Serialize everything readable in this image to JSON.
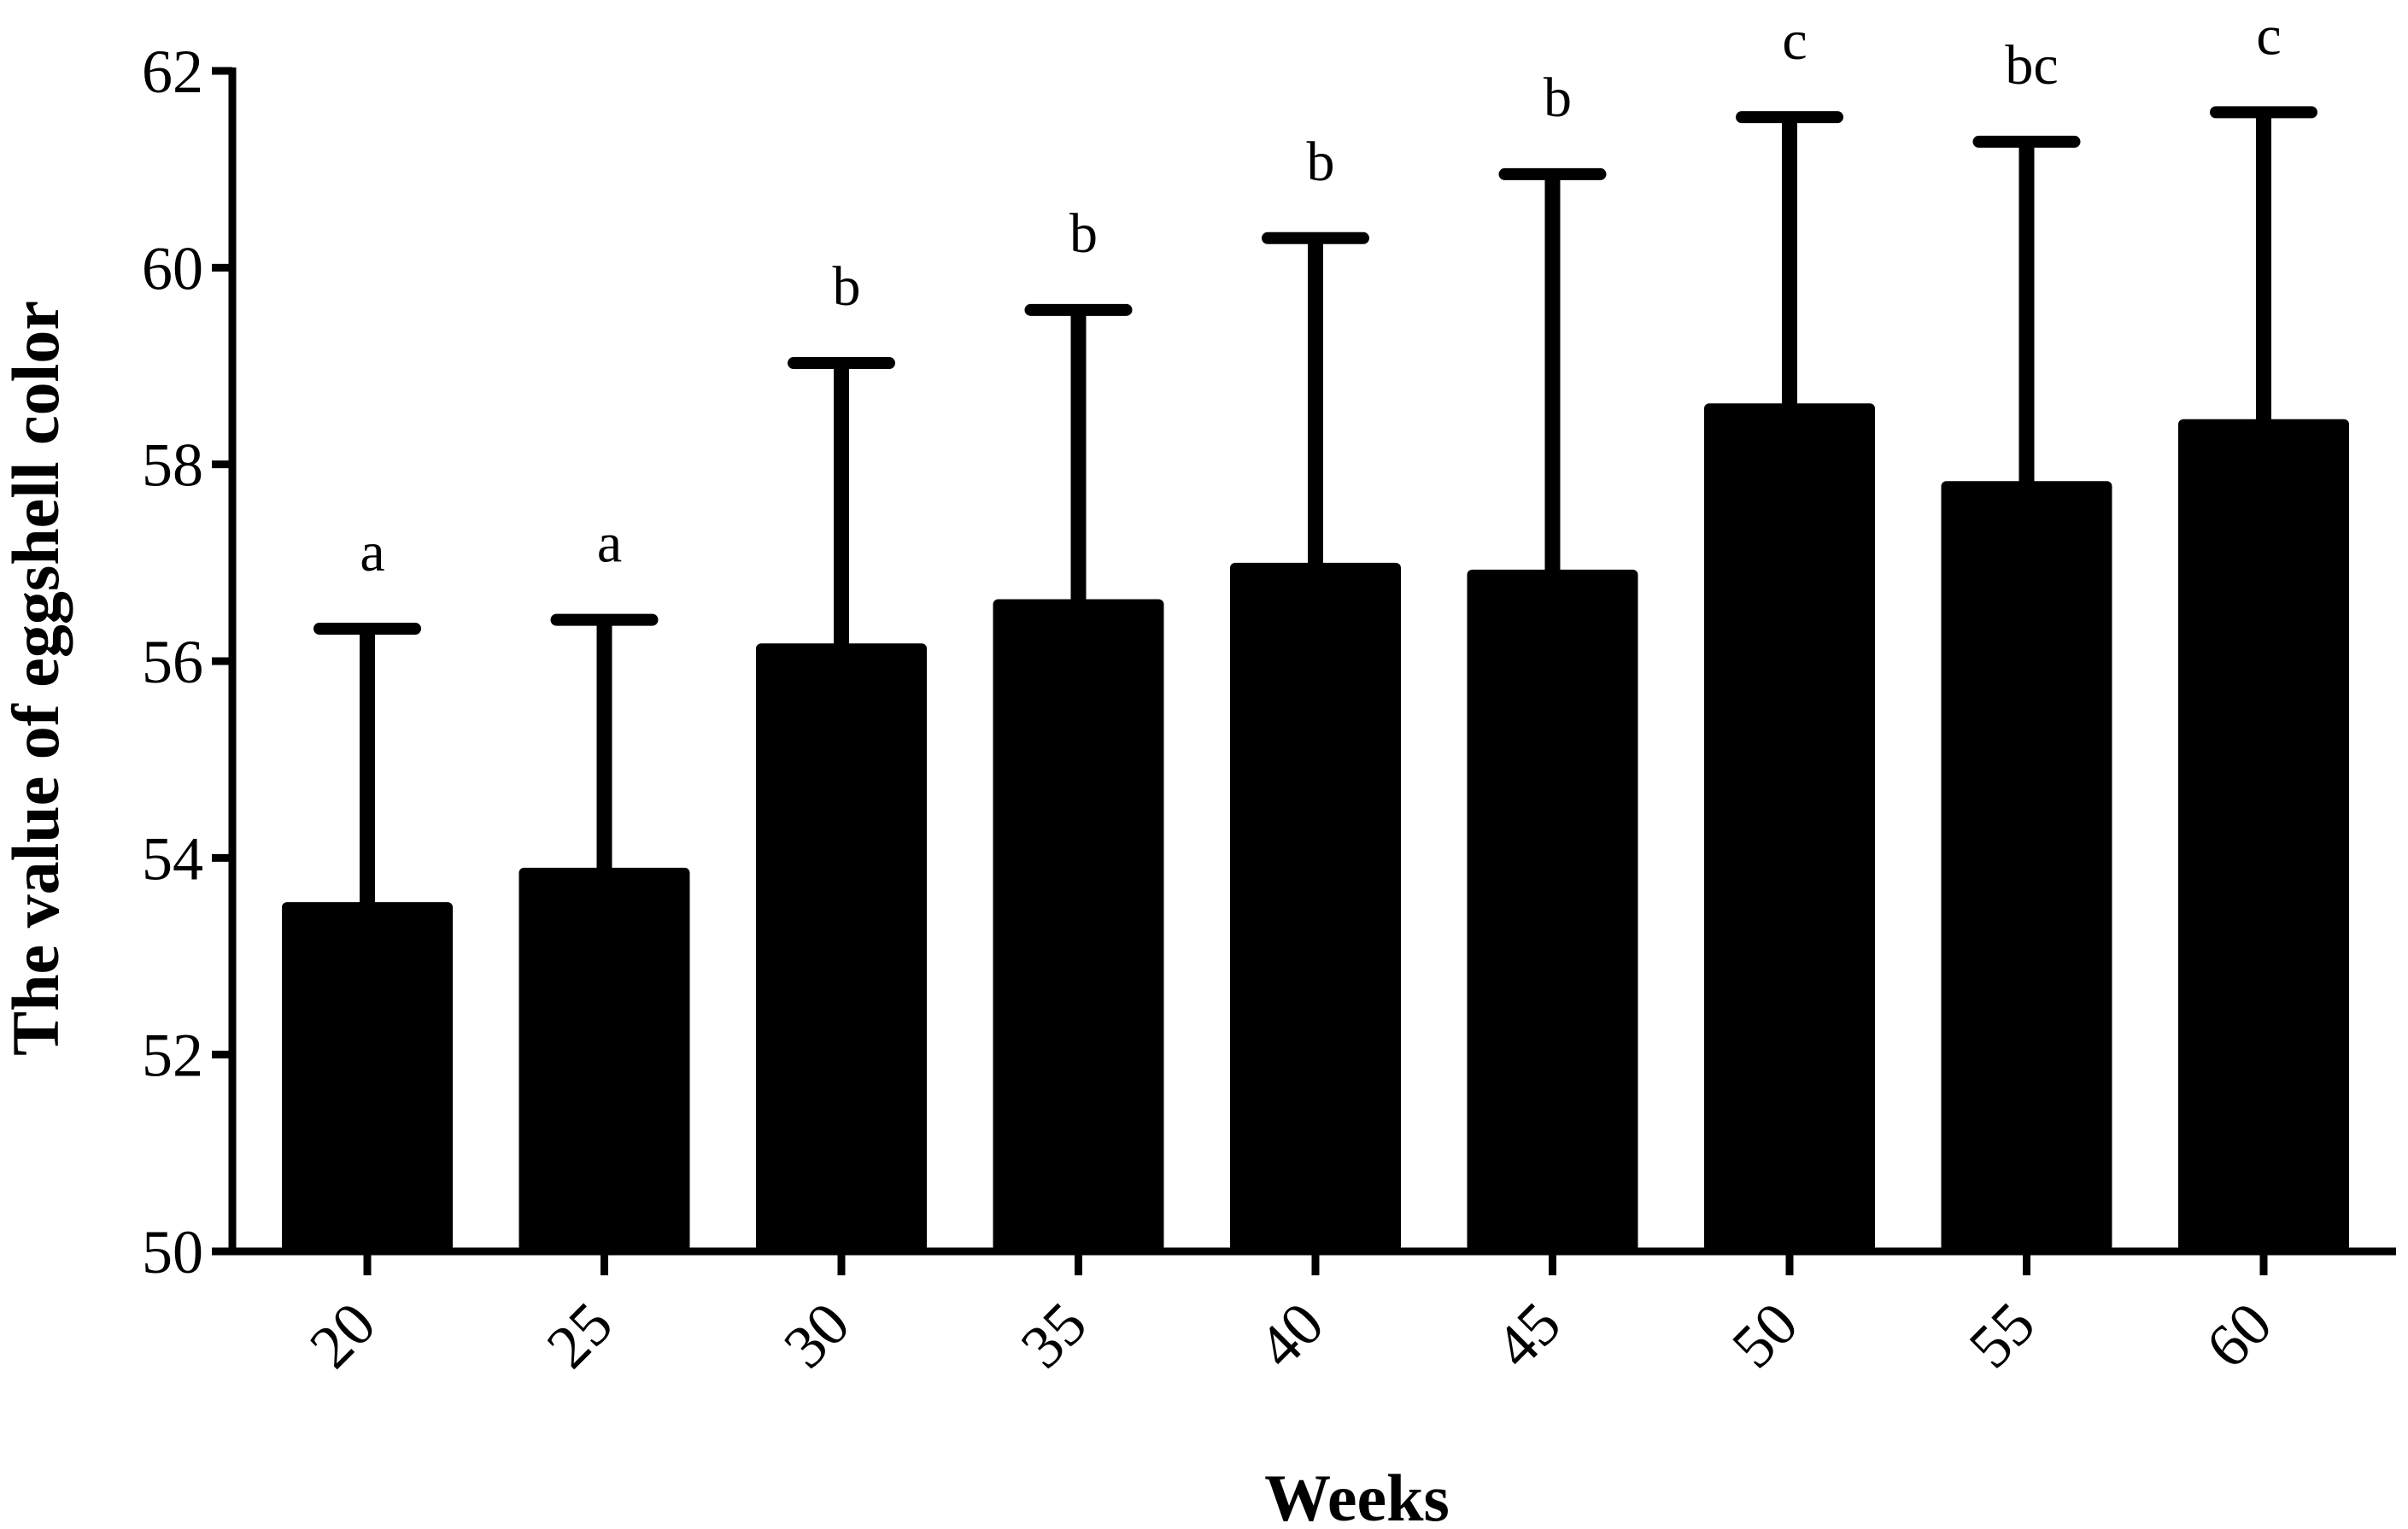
{
  "chart_data": {
    "type": "bar",
    "title": "",
    "xlabel": "Weeks",
    "ylabel": "The value of eggshell color",
    "categories": [
      "20",
      "25",
      "30",
      "35",
      "40",
      "45",
      "50",
      "55",
      "60"
    ],
    "values": [
      53.55,
      53.9,
      56.18,
      56.63,
      57.0,
      56.93,
      58.62,
      57.83,
      58.46
    ],
    "error_upper": [
      56.33,
      56.42,
      59.03,
      59.57,
      60.3,
      60.95,
      61.53,
      61.28,
      61.58
    ],
    "significance": [
      "a",
      "a",
      "b",
      "b",
      "b",
      "b",
      "c",
      "bc",
      "c"
    ],
    "ylim": [
      50,
      62
    ],
    "yticks": [
      "50",
      "52",
      "54",
      "56",
      "58",
      "60",
      "62"
    ],
    "grid": false,
    "legend": "none",
    "colors": {
      "bar": "#000000",
      "axis": "#000000",
      "background": "#ffffff"
    }
  }
}
